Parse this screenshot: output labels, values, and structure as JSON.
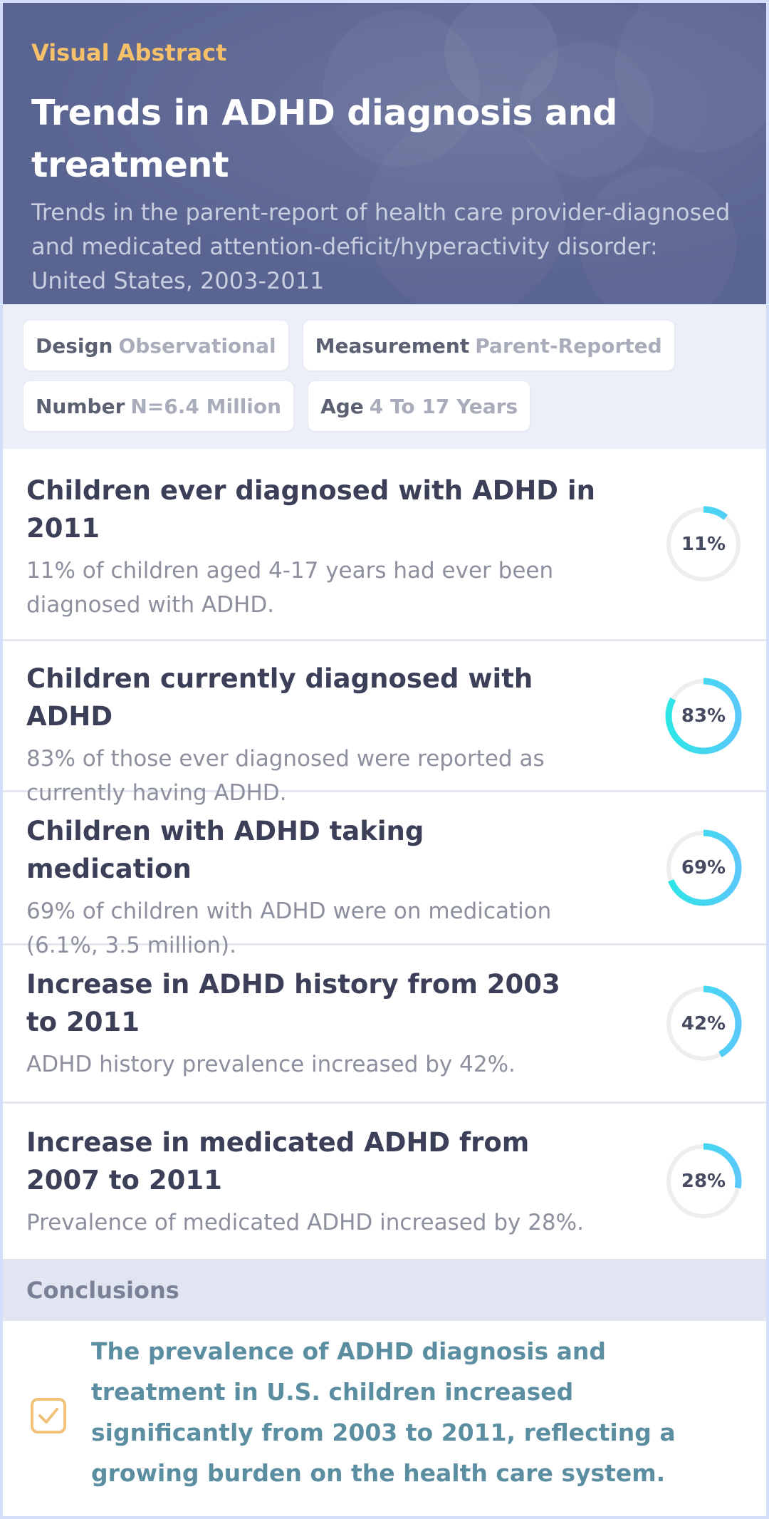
{
  "header": {
    "eyebrow": "Visual Abstract",
    "title": "Trends in ADHD diagnosis and treatment",
    "subtitle": "Trends in the parent-report of health care provider-diagnosed and medicated attention-deficit/hyperactivity disorder: United States, 2003-2011"
  },
  "chips": [
    {
      "key": "Design",
      "value": "Observational"
    },
    {
      "key": "Measurement",
      "value": "Parent-Reported"
    },
    {
      "key": "Number",
      "value": "N=6.4 Million"
    },
    {
      "key": "Age",
      "value": "4 To 17 Years"
    }
  ],
  "findings": [
    {
      "title": "Children ever diagnosed with ADHD in 2011",
      "desc": "11% of children aged 4-17 years had ever been diagnosed with ADHD.",
      "percent_label": "11%",
      "percent": 11
    },
    {
      "title": "Children currently diagnosed with ADHD",
      "desc": "83% of those ever diagnosed were reported as currently having ADHD.",
      "percent_label": "83%",
      "percent": 83
    },
    {
      "title": "Children with ADHD taking medication",
      "desc": "69% of children with ADHD were on medication (6.1%, 3.5 million).",
      "percent_label": "69%",
      "percent": 69
    },
    {
      "title": "Increase in ADHD history from 2003 to 2011",
      "desc": "ADHD history prevalence increased by 42%.",
      "percent_label": "42%",
      "percent": 42
    },
    {
      "title": "Increase in medicated ADHD from 2007 to 2011",
      "desc": "Prevalence of medicated ADHD increased by 28%.",
      "percent_label": "28%",
      "percent": 28
    }
  ],
  "conclusions": {
    "heading": "Conclusions",
    "text": "The prevalence of ADHD diagnosis and treatment in U.S. children increased significantly from 2003 to 2011, reflecting a growing burden on the health care system.",
    "icon": "checkbox-check-icon"
  },
  "colors": {
    "header_bg": "#5a6491",
    "eyebrow": "#f4c06a",
    "ring_start": "#2ee6e6",
    "ring_end": "#5ac8fa",
    "ring_track": "#eeeeee",
    "conclusion_text": "#5b8ea0",
    "check_icon": "#f0c27a"
  }
}
